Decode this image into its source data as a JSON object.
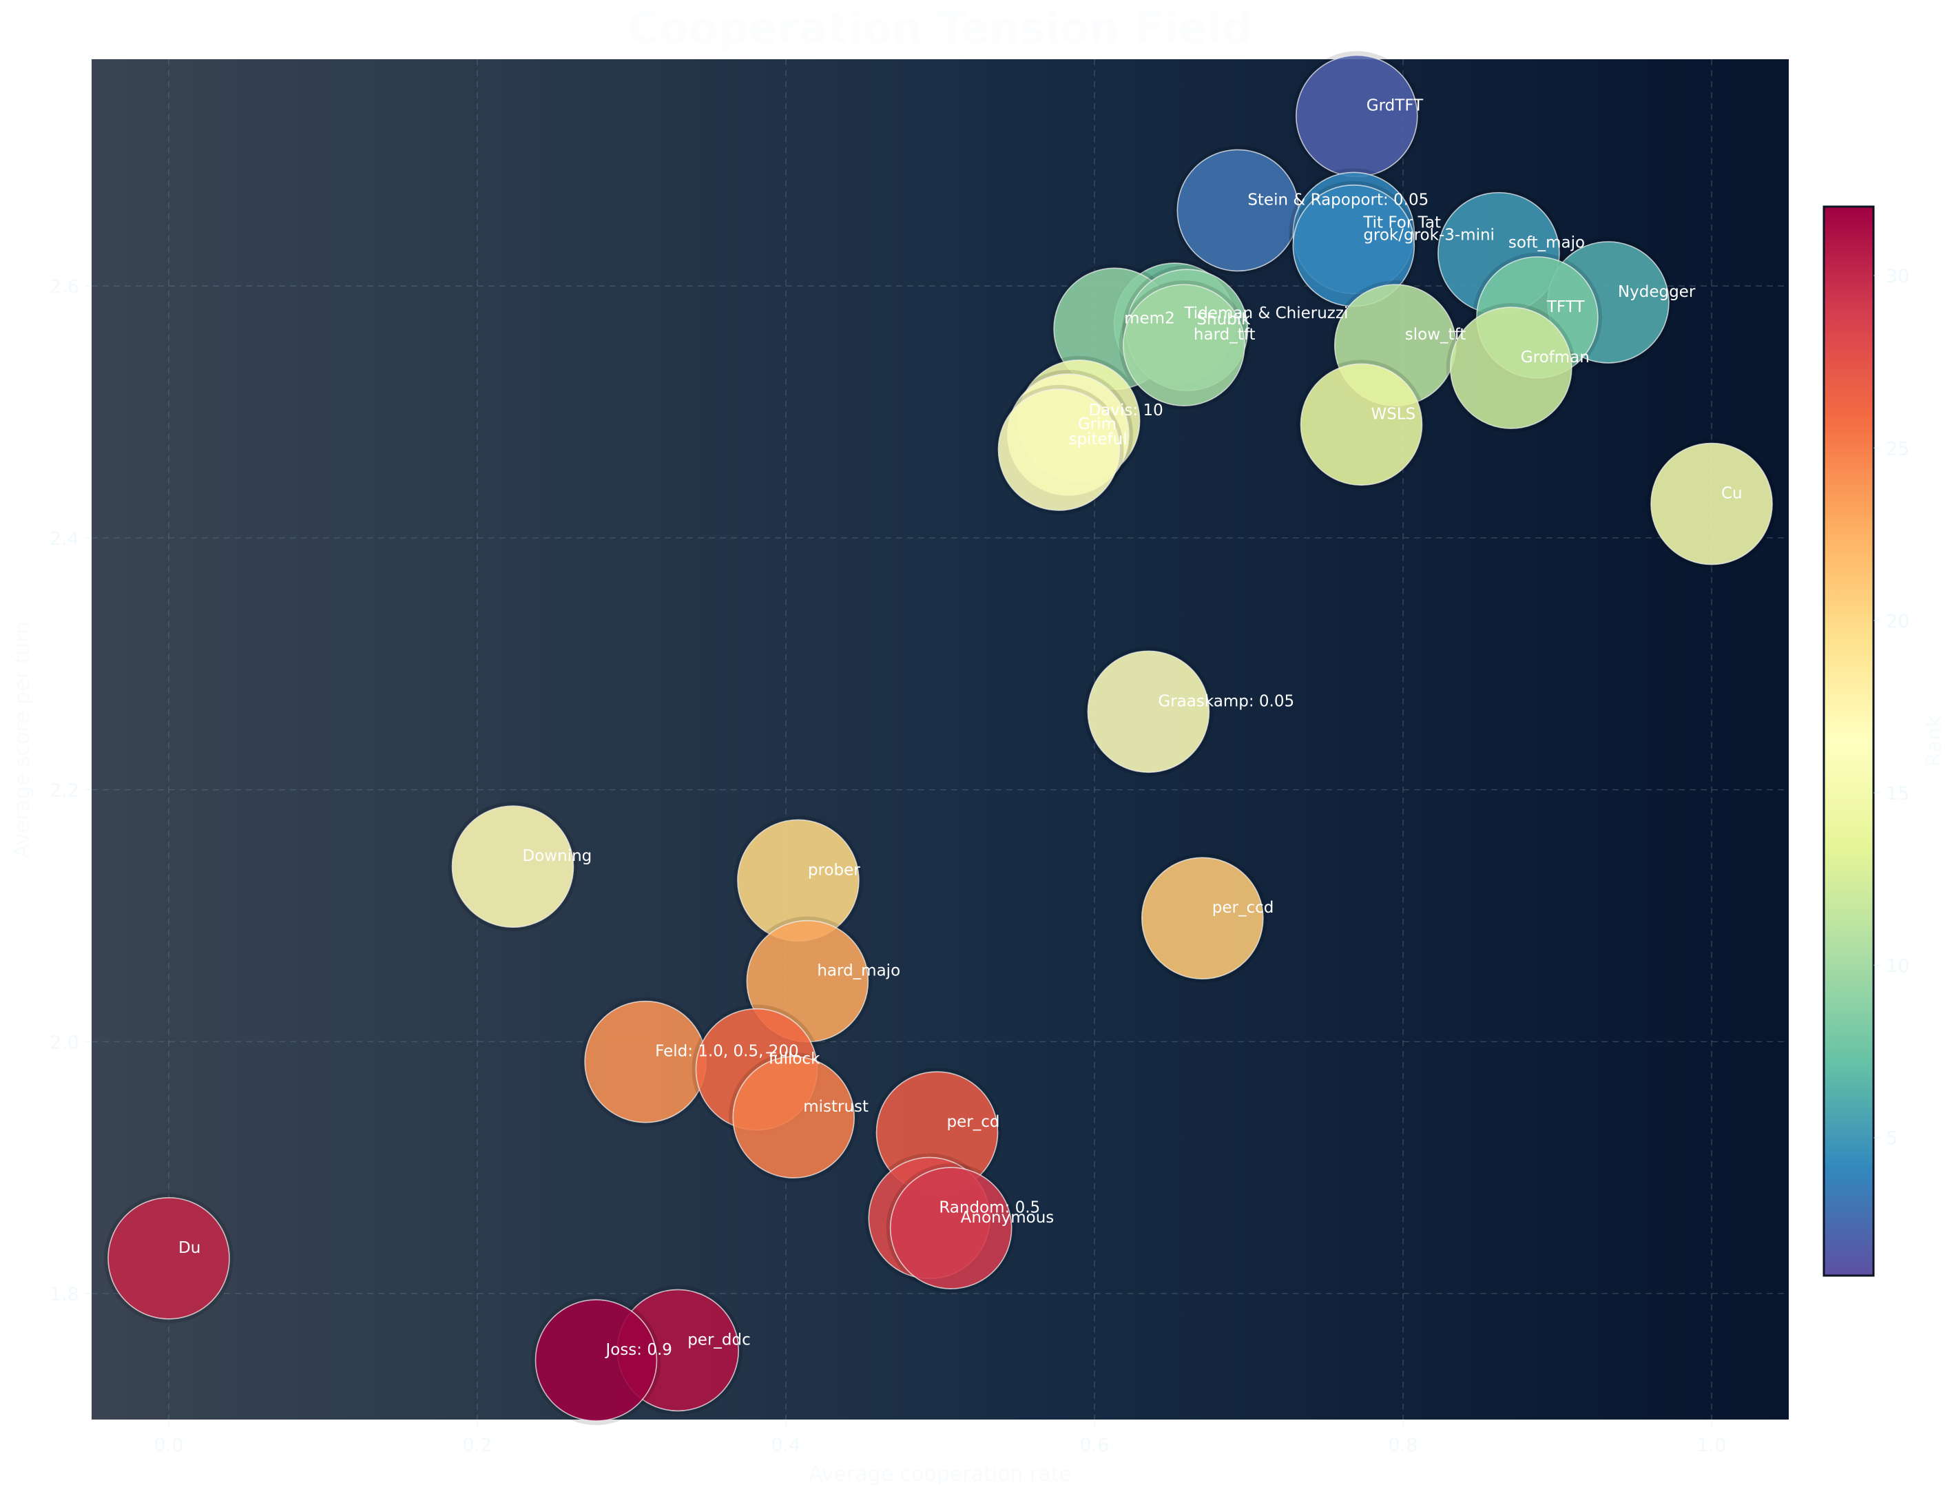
{
  "chart_data": {
    "type": "scatter",
    "title": "Cooperation Tension Field",
    "xlabel": "Average cooperation rate",
    "ylabel": "Average score per turn",
    "xlim": [
      -0.05,
      1.05
    ],
    "ylim": [
      1.7,
      2.78
    ],
    "xticks": [
      "0.0",
      "0.2",
      "0.4",
      "0.6",
      "0.8",
      "1.0"
    ],
    "yticks": [
      "1.8",
      "2.0",
      "2.2",
      "2.4",
      "2.6"
    ],
    "grid": true,
    "colorbar": {
      "label": "Rank",
      "min": 1,
      "max": 32,
      "ticks": [
        "5",
        "10",
        "15",
        "20",
        "25",
        "30"
      ]
    },
    "points": [
      {
        "name": "GrdTFT",
        "x": 0.77,
        "y": 2.735,
        "rank": 2
      },
      {
        "name": "Stein & Rapoport: 0.05",
        "x": 0.693,
        "y": 2.66,
        "rank": 3
      },
      {
        "name": "Tit For Tat",
        "x": 0.768,
        "y": 2.642,
        "rank": 4
      },
      {
        "name": "grok/grok-3-mini",
        "x": 0.768,
        "y": 2.632,
        "rank": 4
      },
      {
        "name": "soft_majo",
        "x": 0.862,
        "y": 2.626,
        "rank": 5
      },
      {
        "name": "Nydegger",
        "x": 0.933,
        "y": 2.587,
        "rank": 6
      },
      {
        "name": "TFTT",
        "x": 0.887,
        "y": 2.575,
        "rank": 8
      },
      {
        "name": "Tideman & Chieruzzi",
        "x": 0.652,
        "y": 2.57,
        "rank": 8
      },
      {
        "name": "mem2",
        "x": 0.613,
        "y": 2.566,
        "rank": 9
      },
      {
        "name": "Shubik",
        "x": 0.66,
        "y": 2.565,
        "rank": 9
      },
      {
        "name": "hard_tft",
        "x": 0.658,
        "y": 2.553,
        "rank": 10
      },
      {
        "name": "slow_tft",
        "x": 0.795,
        "y": 2.553,
        "rank": 11
      },
      {
        "name": "Grofman",
        "x": 0.87,
        "y": 2.535,
        "rank": 12
      },
      {
        "name": "Davis: 10",
        "x": 0.59,
        "y": 2.493,
        "rank": 15
      },
      {
        "name": "Grim",
        "x": 0.583,
        "y": 2.482,
        "rank": 16
      },
      {
        "name": "WSLS",
        "x": 0.773,
        "y": 2.49,
        "rank": 14
      },
      {
        "name": "spiteful",
        "x": 0.577,
        "y": 2.47,
        "rank": 16
      },
      {
        "name": "Cu",
        "x": 1.0,
        "y": 2.427,
        "rank": 15
      },
      {
        "name": "Graaskamp: 0.05",
        "x": 0.635,
        "y": 2.262,
        "rank": 16
      },
      {
        "name": "Downing",
        "x": 0.223,
        "y": 2.139,
        "rank": 17
      },
      {
        "name": "prober",
        "x": 0.408,
        "y": 2.128,
        "rank": 20
      },
      {
        "name": "per_ccd",
        "x": 0.67,
        "y": 2.098,
        "rank": 21
      },
      {
        "name": "hard_majo",
        "x": 0.414,
        "y": 2.048,
        "rank": 23
      },
      {
        "name": "Feld: 1.0, 0.5, 200",
        "x": 0.309,
        "y": 1.984,
        "rank": 24
      },
      {
        "name": "Tullock",
        "x": 0.381,
        "y": 1.978,
        "rank": 26
      },
      {
        "name": "mistrust",
        "x": 0.405,
        "y": 1.94,
        "rank": 25
      },
      {
        "name": "per_cd",
        "x": 0.498,
        "y": 1.928,
        "rank": 27
      },
      {
        "name": "Random: 0.5",
        "x": 0.493,
        "y": 1.86,
        "rank": 28
      },
      {
        "name": "Anonymous",
        "x": 0.507,
        "y": 1.852,
        "rank": 29
      },
      {
        "name": "Du",
        "x": 0.0,
        "y": 1.828,
        "rank": 30
      },
      {
        "name": "per_ddc",
        "x": 0.33,
        "y": 1.755,
        "rank": 31
      },
      {
        "name": "Joss: 0.9",
        "x": 0.277,
        "y": 1.747,
        "rank": 32
      }
    ]
  }
}
